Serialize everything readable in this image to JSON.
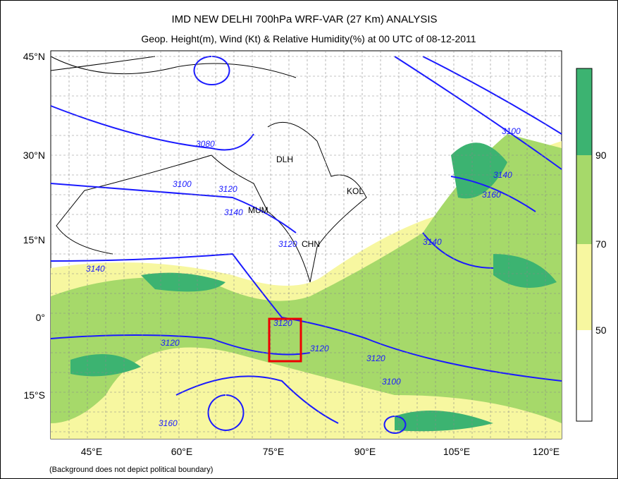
{
  "header": {
    "title": "IMD NEW DELHI 700hPa WRF-VAR (27 Km) ANALYSIS",
    "subtitle": "Geop. Height(m), Wind (Kt) & Relative Humidity(%)  at 00 UTC of 08-12-2011"
  },
  "map": {
    "lat_labels": [
      "45°N",
      "30°N",
      "15°N",
      "0°",
      "15°S"
    ],
    "lon_labels": [
      "45°E",
      "60°E",
      "75°E",
      "90°E",
      "105°E",
      "120°E"
    ],
    "cities": [
      "DLH",
      "MUM",
      "KOL",
      "CHN"
    ],
    "contour_labels": [
      "3080",
      "3100",
      "3120",
      "3140",
      "3120",
      "3140",
      "3120",
      "3120",
      "3120",
      "3120",
      "3100",
      "3140",
      "3140",
      "3160",
      "3100",
      "3160"
    ]
  },
  "colorbar": {
    "labels": [
      "90",
      "70",
      "50"
    ]
  },
  "footer": {
    "note": "(Background does not depict political boundary)"
  }
}
